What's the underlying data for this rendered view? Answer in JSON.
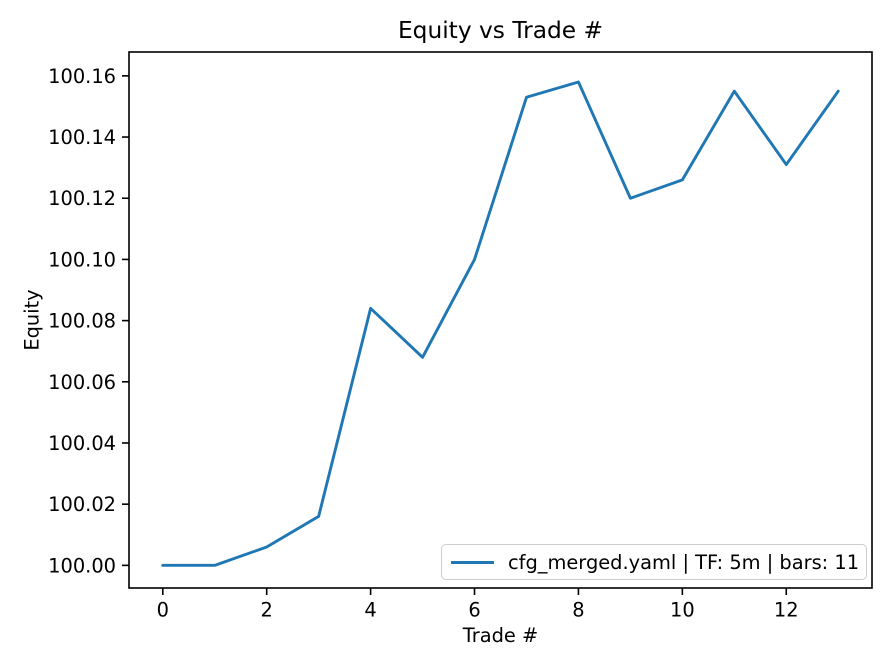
{
  "figure": {
    "background": "#ffffff",
    "axis_color": "#000000",
    "text_color": "#000000"
  },
  "chart_data": {
    "type": "line",
    "title": "Equity vs Trade #",
    "xlabel": "Trade #",
    "ylabel": "Equity",
    "x": [
      0,
      1,
      2,
      3,
      4,
      5,
      6,
      7,
      8,
      9,
      10,
      11,
      12,
      13
    ],
    "series": [
      {
        "name": "cfg_merged.yaml | TF: 5m | bars: 11",
        "color": "#1f77b4",
        "values": [
          100.0,
          100.0,
          100.006,
          100.016,
          100.084,
          100.068,
          100.1,
          100.153,
          100.158,
          100.12,
          100.126,
          100.155,
          100.131,
          100.155
        ]
      }
    ],
    "xlim": [
      -0.65,
      13.65
    ],
    "ylim": [
      99.9926,
      100.1678
    ],
    "xticks": {
      "values": [
        0,
        2,
        4,
        6,
        8,
        10,
        12
      ],
      "labels": [
        "0",
        "2",
        "4",
        "6",
        "8",
        "10",
        "12"
      ]
    },
    "yticks": {
      "values": [
        100.0,
        100.02,
        100.04,
        100.06,
        100.08,
        100.1,
        100.12,
        100.14,
        100.16
      ],
      "labels": [
        "100.00",
        "100.02",
        "100.04",
        "100.06",
        "100.08",
        "100.10",
        "100.12",
        "100.14",
        "100.16"
      ]
    },
    "legend": {
      "location": "lower right",
      "label": "cfg_merged.yaml | TF: 5m | bars: 11"
    },
    "grid": false
  }
}
